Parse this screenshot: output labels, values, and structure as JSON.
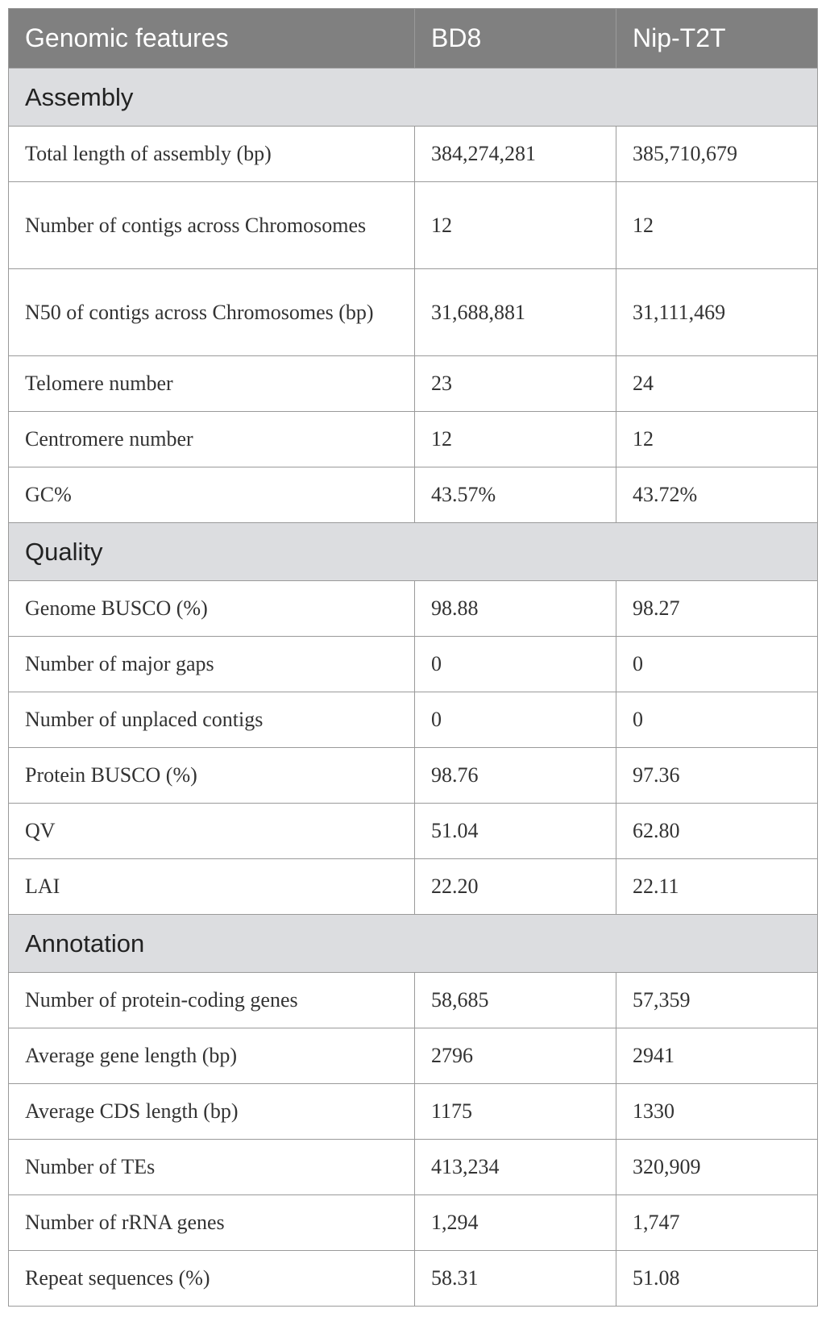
{
  "header": [
    "Genomic features",
    "BD8",
    "Nip-T2T"
  ],
  "sections": [
    {
      "title": "Assembly",
      "rows": [
        [
          "Total length of assembly (bp)",
          "384,274,281",
          "385,710,679"
        ],
        [
          "Number of contigs across Chromosomes",
          "12",
          "12"
        ],
        [
          "N50 of contigs across Chromosomes (bp)",
          "31,688,881",
          "31,111,469"
        ],
        [
          "Telomere number",
          "23",
          "24"
        ],
        [
          "Centromere number",
          "12",
          "12"
        ],
        [
          "GC%",
          "43.57%",
          "43.72%"
        ]
      ]
    },
    {
      "title": "Quality",
      "rows": [
        [
          "Genome BUSCO (%)",
          "98.88",
          "98.27"
        ],
        [
          "Number of major gaps",
          "0",
          "0"
        ],
        [
          "Number of unplaced contigs",
          "0",
          "0"
        ],
        [
          "Protein BUSCO (%)",
          "98.76",
          "97.36"
        ],
        [
          "QV",
          "51.04",
          "62.80"
        ],
        [
          "LAI",
          "22.20",
          "22.11"
        ]
      ]
    },
    {
      "title": "Annotation",
      "rows": [
        [
          "Number of protein-coding genes",
          "58,685",
          "57,359"
        ],
        [
          "Average gene length (bp)",
          "2796",
          "2941"
        ],
        [
          "Average CDS length (bp)",
          "1175",
          "1330"
        ],
        [
          "Number of TEs",
          "413,234",
          "320,909"
        ],
        [
          "Number of rRNA genes",
          "1,294",
          "1,747"
        ],
        [
          "Repeat sequences (%)",
          "58.31",
          "51.08"
        ]
      ]
    }
  ]
}
